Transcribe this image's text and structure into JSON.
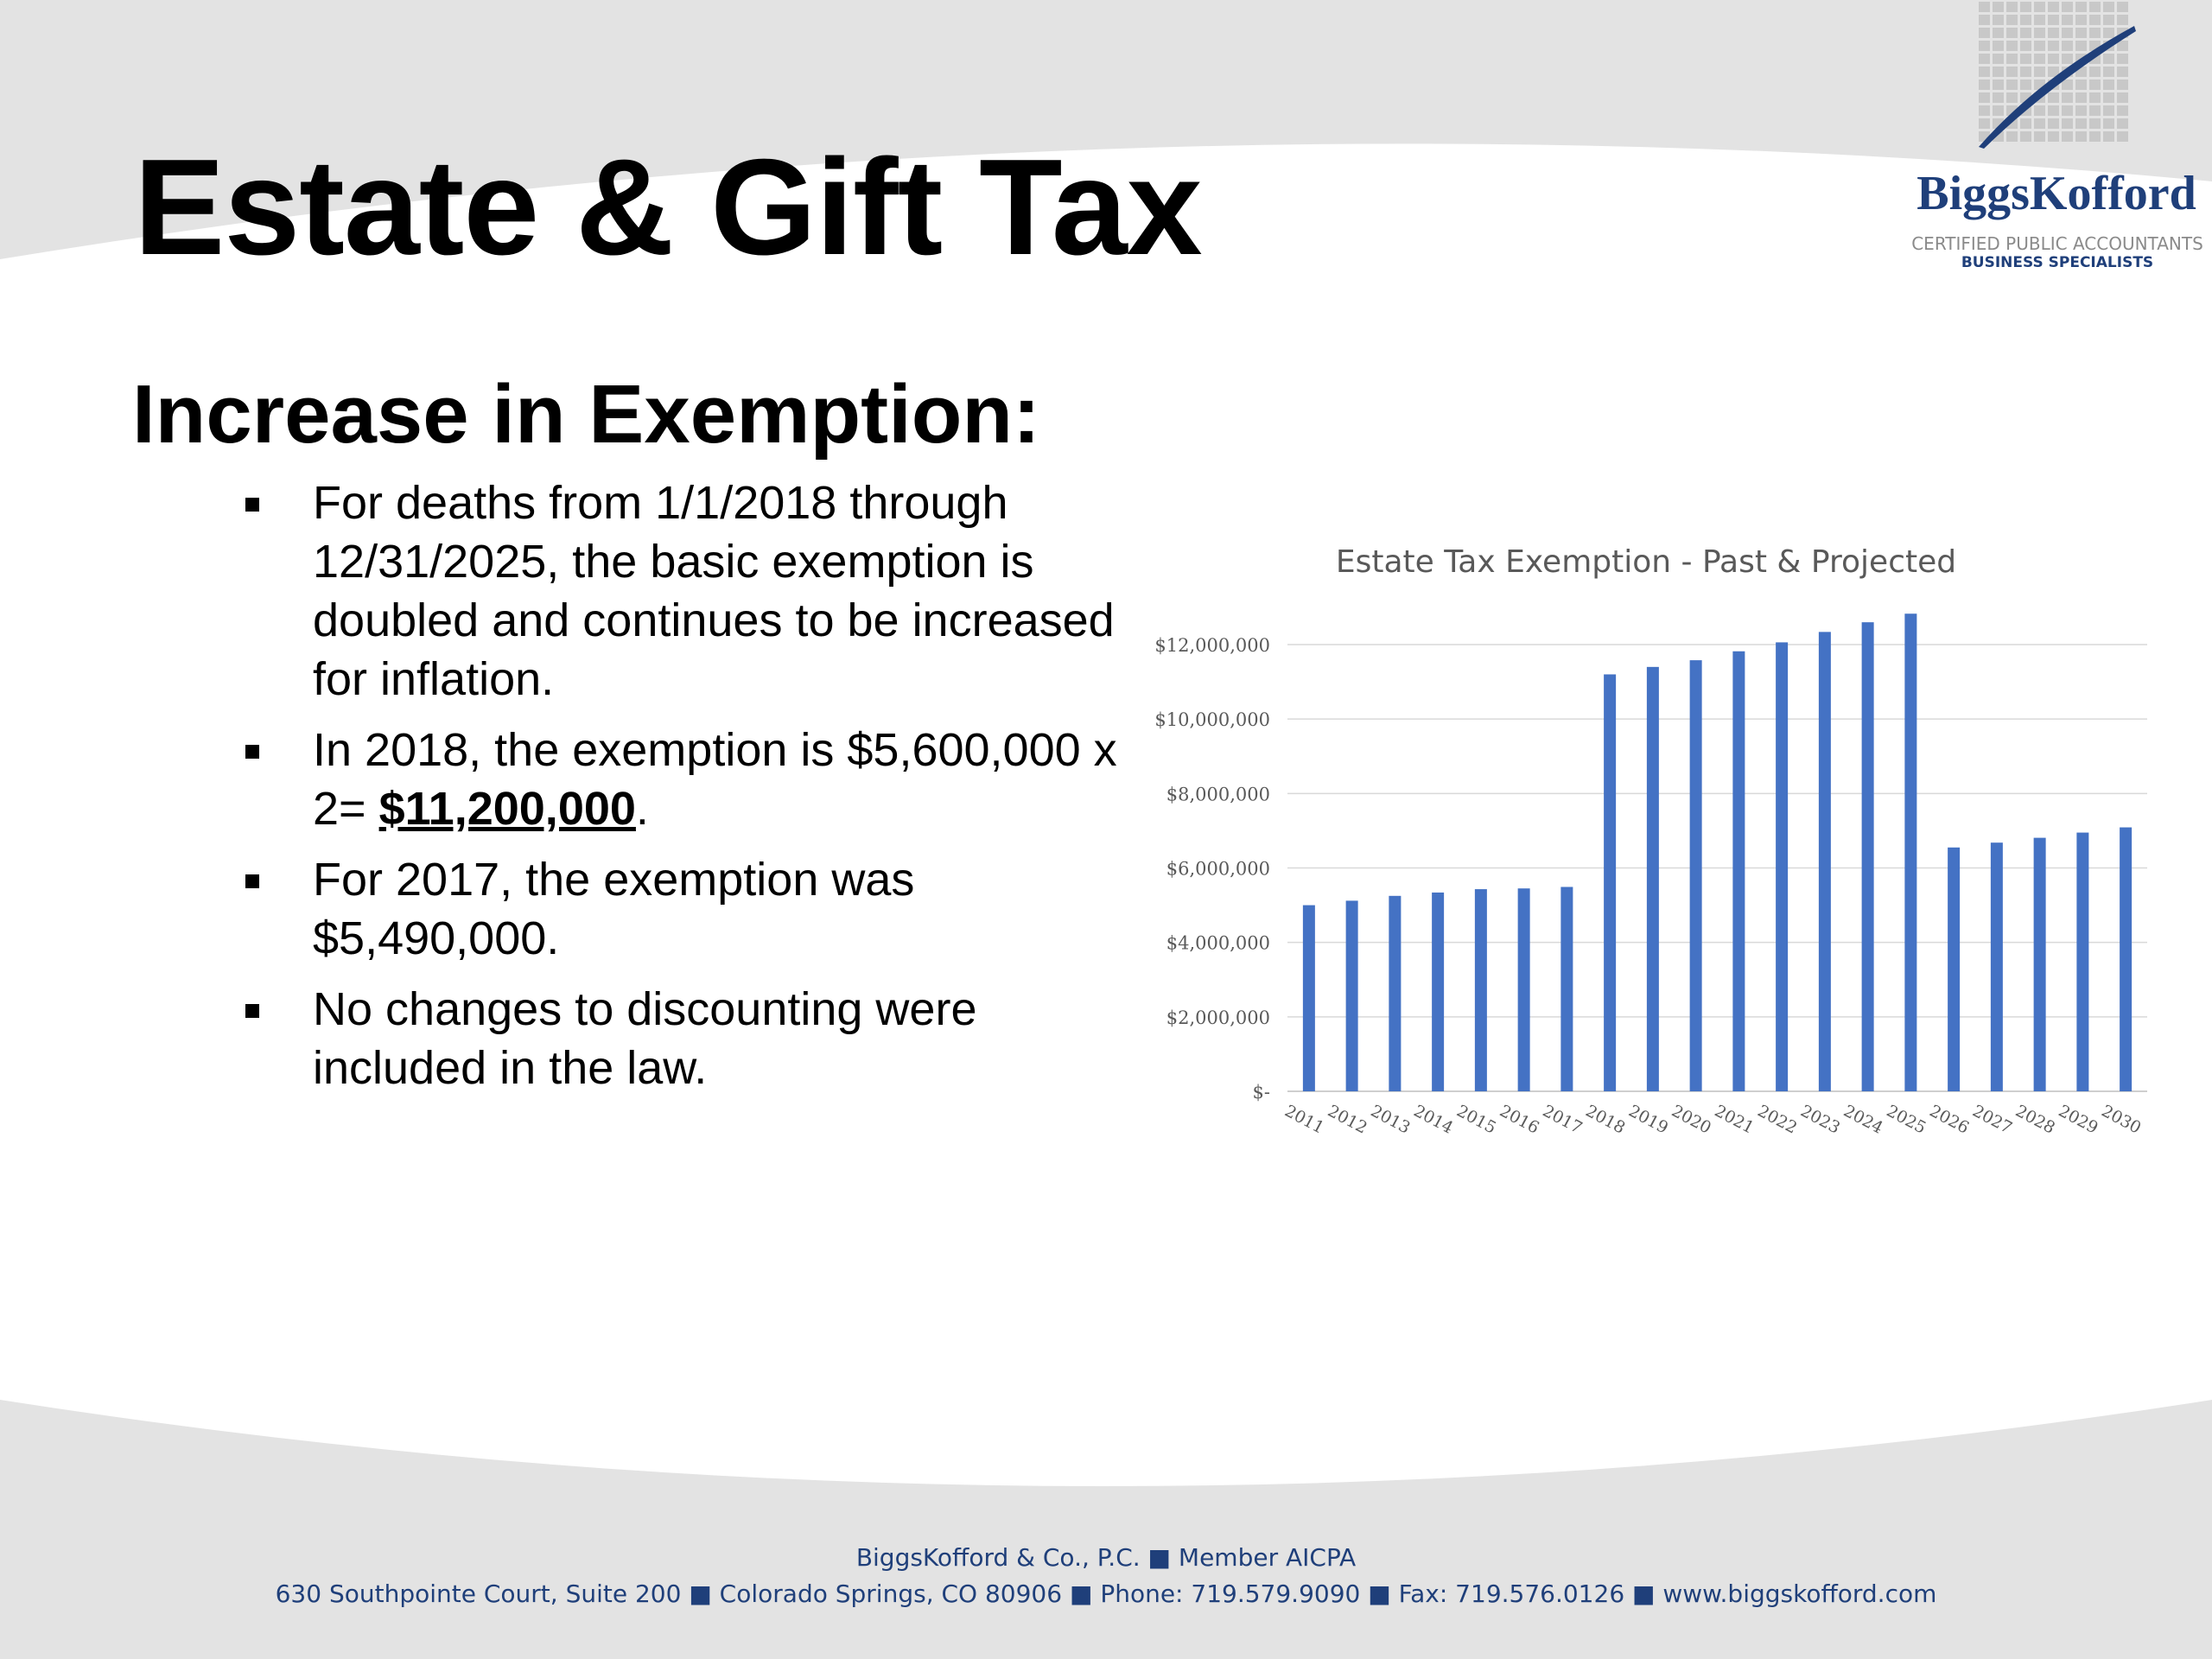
{
  "slide": {
    "title": "Estate & Gift Tax",
    "subtitle": "Increase in Exemption:",
    "bullets": [
      "For deaths from 1/1/2018 through 12/31/2025, the basic exemption is doubled and continues to be increased for inflation.",
      "In 2018, the exemption is $5,600,000 x 2=",
      "For 2017, the exemption was $5,490,000.",
      "No changes to discounting were included in the law."
    ],
    "bullet2_emphasis": "$11,200,000",
    "bullet2_end": "."
  },
  "logo": {
    "name": "BiggsKofford",
    "line1": "CERTIFIED PUBLIC ACCOUNTANTS",
    "line2": "BUSINESS SPECIALISTS"
  },
  "footer": {
    "line1": "BiggsKofford & Co., P.C.  ■  Member AICPA",
    "line2": "630 Southpointe Court, Suite 200  ■  Colorado Springs, CO 80906  ■  Phone: 719.579.9090  ■  Fax: 719.576.0126  ■  www.biggskofford.com"
  },
  "colors": {
    "bar": "#4472c4",
    "brand": "#1f3f7a",
    "band": "#e3e3e3"
  },
  "chart_data": {
    "type": "bar",
    "title": "Estate Tax Exemption - Past & Projected",
    "xlabel": "",
    "ylabel": "",
    "ylim": [
      0,
      12000000
    ],
    "yticks": [
      0,
      2000000,
      4000000,
      6000000,
      8000000,
      10000000,
      12000000
    ],
    "ytick_labels": [
      "$-",
      "$2,000,000",
      "$4,000,000",
      "$6,000,000",
      "$8,000,000",
      "$10,000,000",
      "$12,000,000"
    ],
    "grid": true,
    "legend": "none",
    "categories": [
      "2011",
      "2012",
      "2013",
      "2014",
      "2015",
      "2016",
      "2017",
      "2018",
      "2019",
      "2020",
      "2021",
      "2022",
      "2023",
      "2024",
      "2025",
      "2026",
      "2027",
      "2028",
      "2029",
      "2030"
    ],
    "values": [
      5000000,
      5120000,
      5250000,
      5340000,
      5430000,
      5450000,
      5490000,
      11200000,
      11400000,
      11580000,
      11820000,
      12060000,
      12340000,
      12600000,
      12830000,
      6550000,
      6680000,
      6810000,
      6950000,
      7090000
    ]
  }
}
